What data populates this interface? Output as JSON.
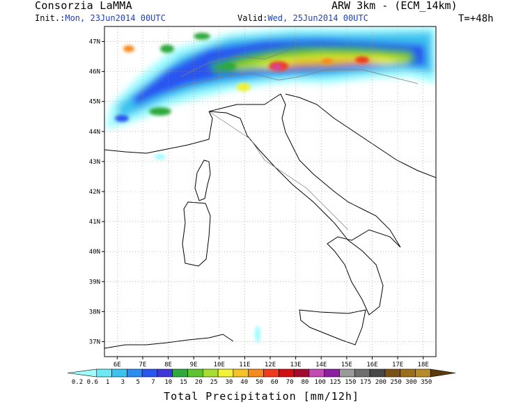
{
  "header": {
    "org": "Consorzia LaMMA",
    "init_label": "Init.:",
    "init_value": "Mon, 23Jun2014 00UTC",
    "valid_label": "Valid:",
    "valid_value": "Wed, 25Jun2014 00UTC",
    "model": "ARW 3km - (ECM_14km)",
    "step": "T=+48h"
  },
  "map": {
    "lon_ticks": [
      "6E",
      "7E",
      "8E",
      "9E",
      "10E",
      "11E",
      "12E",
      "13E",
      "14E",
      "15E",
      "16E",
      "17E",
      "18E"
    ],
    "lat_ticks": [
      "47N",
      "46N",
      "45N",
      "44N",
      "43N",
      "42N",
      "41N",
      "40N",
      "39N",
      "38N",
      "37N"
    ],
    "lon_range": [
      5.5,
      18.5
    ],
    "lat_range": [
      36.5,
      47.5
    ]
  },
  "colorbar": {
    "levels": [
      "0.2",
      "0.6",
      "1",
      "3",
      "5",
      "7",
      "10",
      "15",
      "20",
      "25",
      "30",
      "40",
      "50",
      "60",
      "70",
      "80",
      "100",
      "125",
      "150",
      "175",
      "200",
      "250",
      "300",
      "350"
    ],
    "colors": [
      "#9ffcff",
      "#6ee8f5",
      "#3cc3ef",
      "#2a8df2",
      "#2a55f0",
      "#3f36d9",
      "#2fa83c",
      "#5ec531",
      "#a7dc32",
      "#f2f236",
      "#f7c32a",
      "#f58a1f",
      "#ef3a1c",
      "#d01010",
      "#a30a2e",
      "#c24bb6",
      "#8b1fa0",
      "#9b9b9b",
      "#6e6e6e",
      "#474747",
      "#7a5218",
      "#9c6e1b",
      "#b88a2a",
      "#5c3a0d"
    ],
    "label": "Total Precipitation [mm/12h]"
  }
}
